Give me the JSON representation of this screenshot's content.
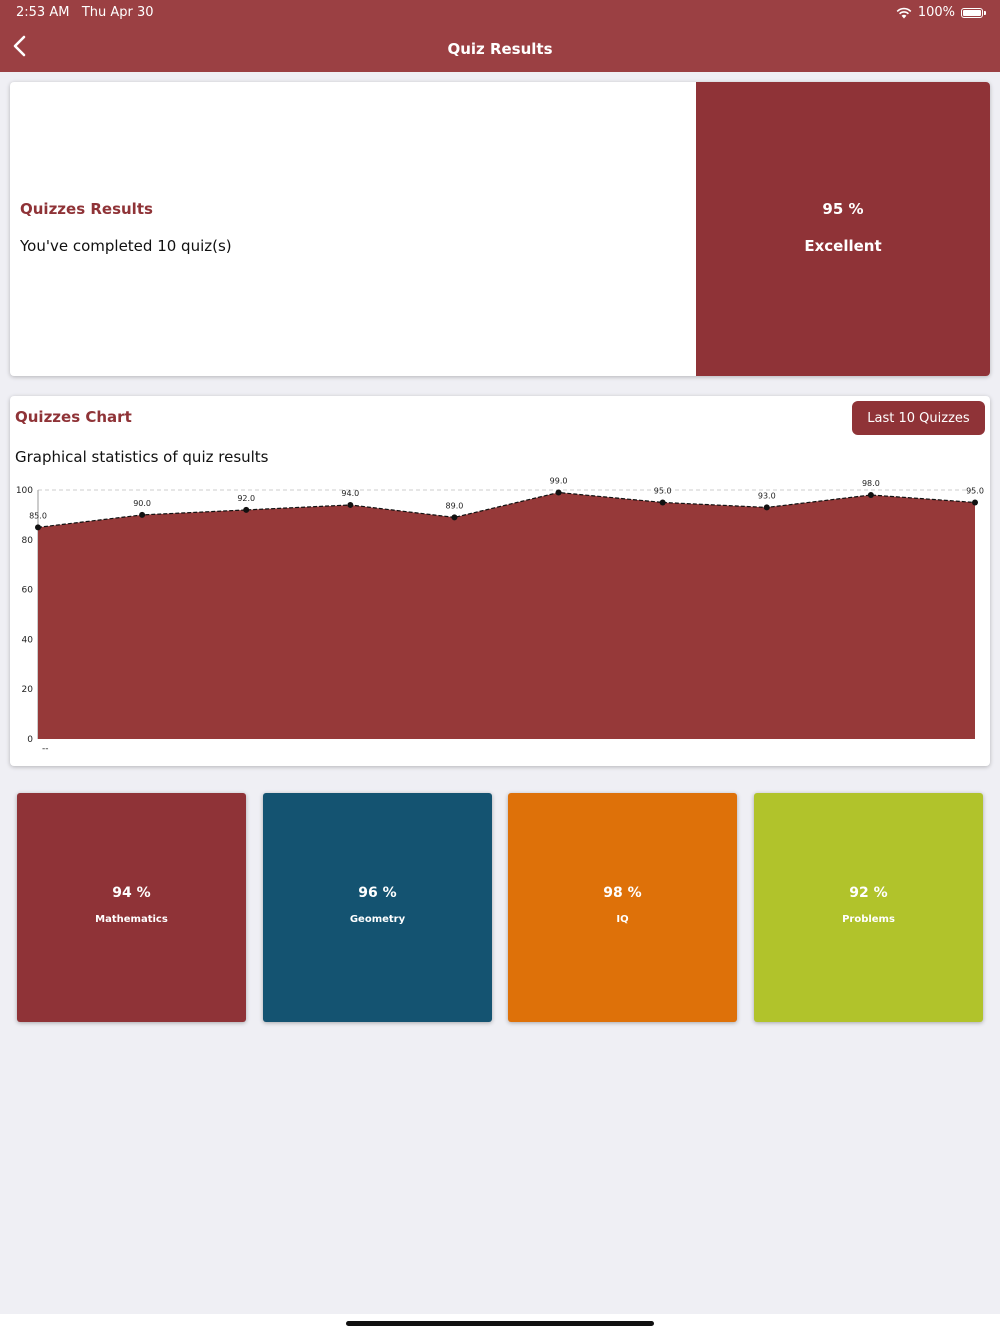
{
  "status": {
    "time": "2:53 AM",
    "date": "Thu Apr 30",
    "battery": "100%"
  },
  "nav": {
    "title": "Quiz Results"
  },
  "summary": {
    "title": "Quizzes Results",
    "completed_text": "You've completed 10 quiz(s)",
    "percent": "95 %",
    "grade": "Excellent"
  },
  "chart_section": {
    "title": "Quizzes Chart",
    "filter_button": "Last 10 Quizzes",
    "subtitle": "Graphical statistics of quiz results"
  },
  "chart_data": {
    "type": "area",
    "x": [
      1,
      2,
      3,
      4,
      5,
      6,
      7,
      8,
      9,
      10
    ],
    "series": [
      {
        "values": [
          85.0,
          90.0,
          92.0,
          94.0,
          89.0,
          99.0,
          95.0,
          93.0,
          98.0,
          95.0
        ]
      }
    ],
    "data_labels": [
      "85.0",
      "90.0",
      "92.0",
      "94.0",
      "89.0",
      "99.0",
      "95.0",
      "93.0",
      "98.0",
      "95.0"
    ],
    "ylim": [
      0,
      100
    ],
    "yticks": [
      "0",
      "20",
      "40",
      "60",
      "80",
      "100"
    ],
    "xlabel": "",
    "ylabel": "",
    "title": "",
    "fill_color": "#963939",
    "legend_text": "--"
  },
  "categories": [
    {
      "percent": "94 %",
      "name": "Mathematics",
      "color": "#8f3337"
    },
    {
      "percent": "96 %",
      "name": "Geometry",
      "color": "#145371"
    },
    {
      "percent": "98 %",
      "name": "IQ",
      "color": "#de7109"
    },
    {
      "percent": "92 %",
      "name": "Problems",
      "color": "#b1c32b"
    }
  ]
}
